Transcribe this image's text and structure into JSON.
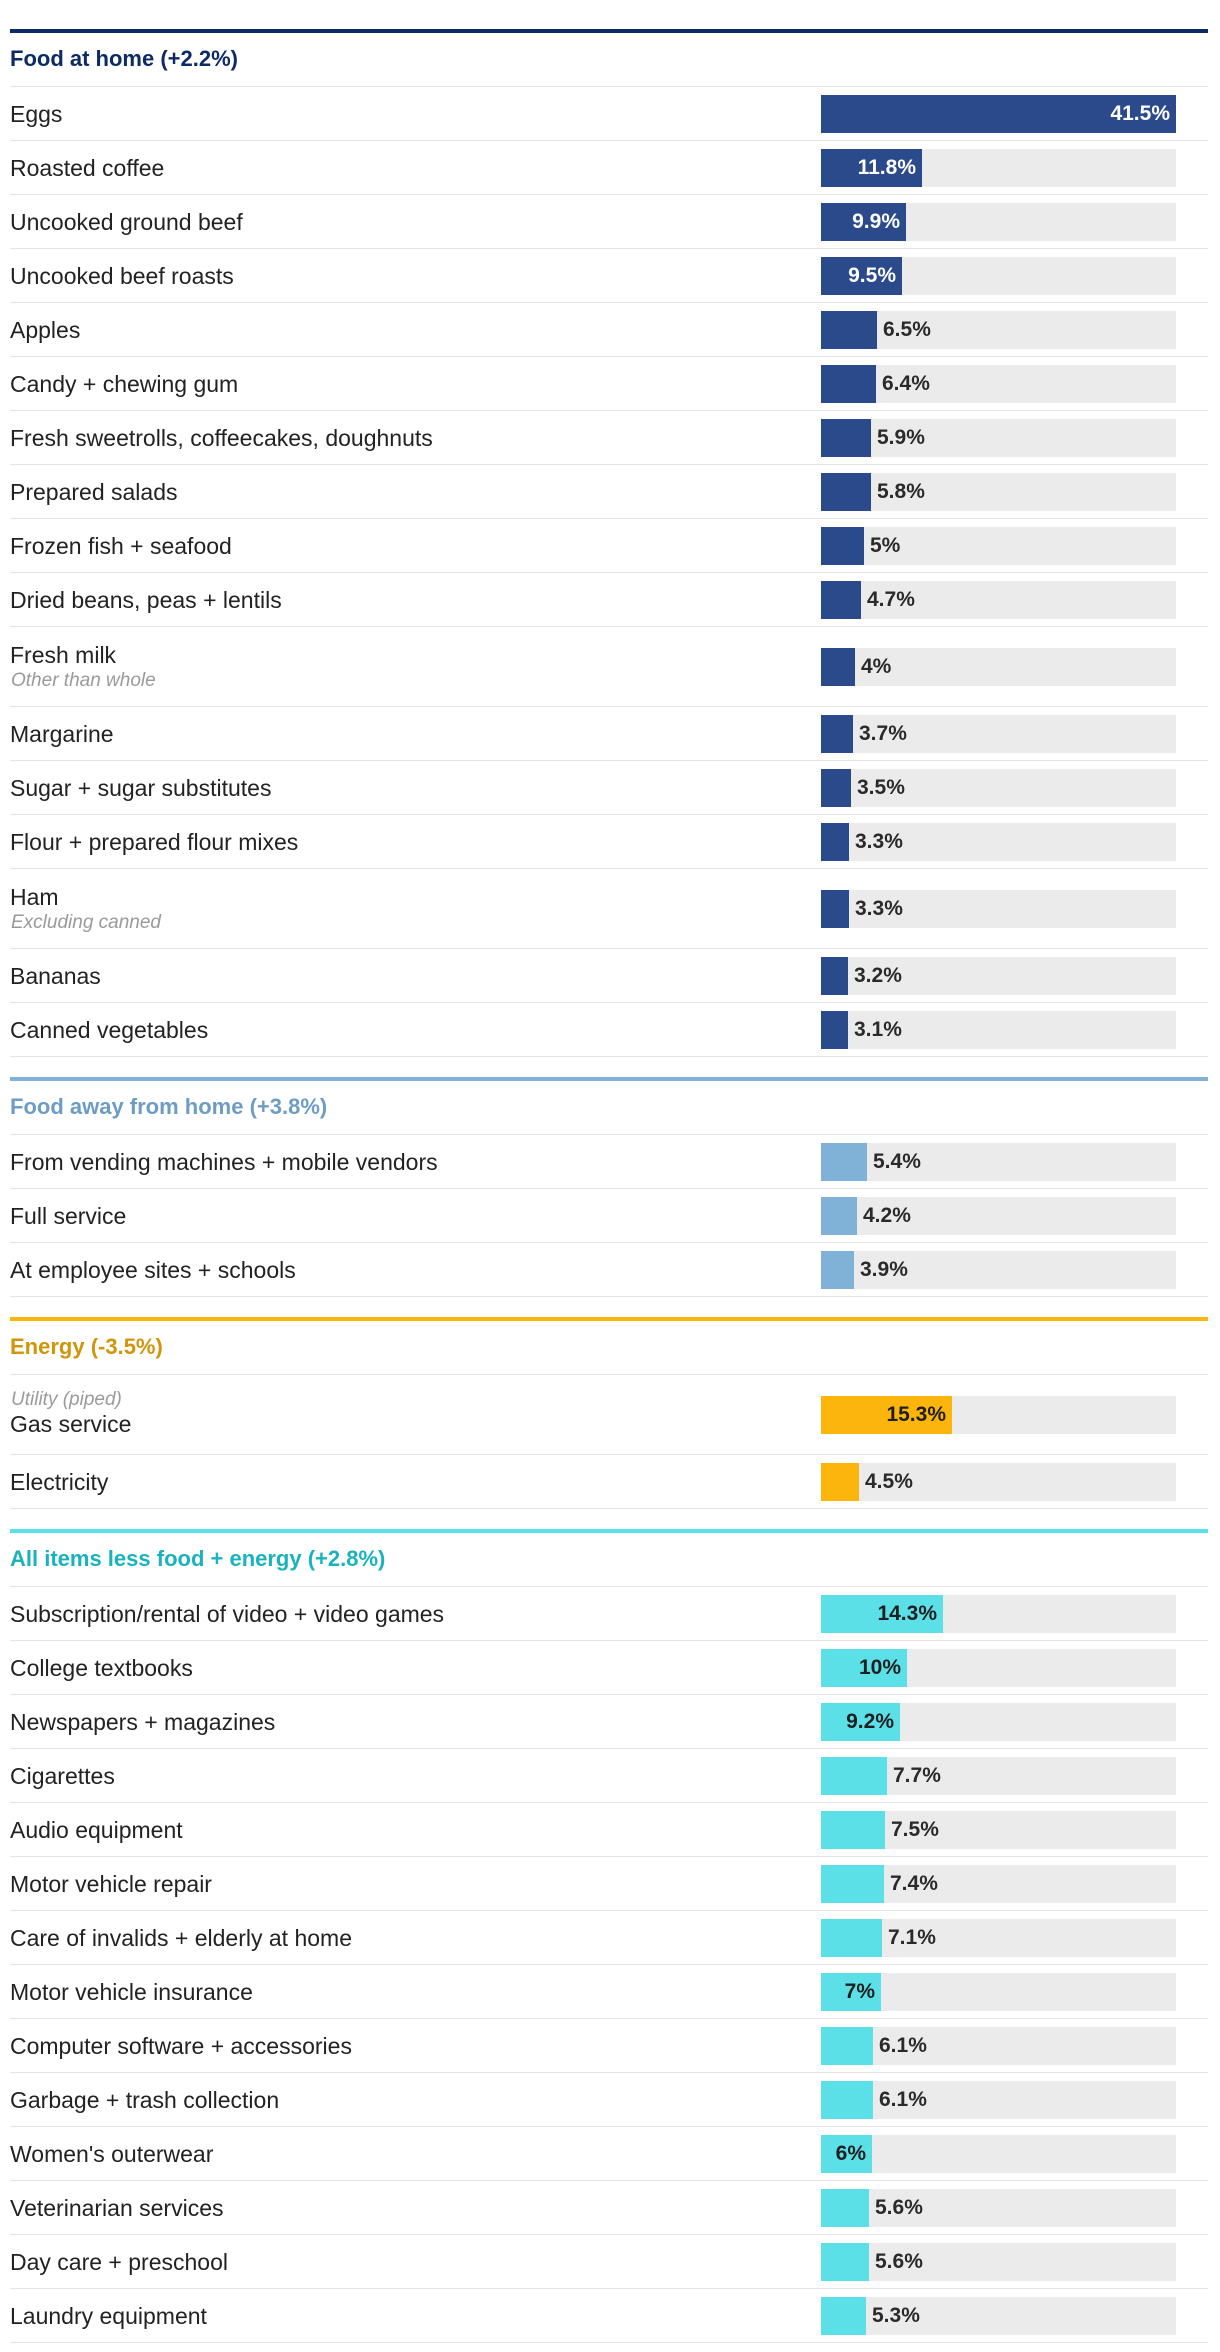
{
  "chart_data": {
    "type": "bar",
    "orientation": "horizontal",
    "title": "",
    "xlim": [
      0,
      41.5
    ],
    "unit": "%",
    "groups": [
      {
        "name": "Food at home (+2.2%)",
        "color": "#2b4a8b",
        "title_color": "#0e2a66",
        "label_color": "dark",
        "items": [
          {
            "label": "Eggs",
            "value": 41.5,
            "display": "41.5%"
          },
          {
            "label": "Roasted coffee",
            "value": 11.8,
            "display": "11.8%"
          },
          {
            "label": "Uncooked ground beef",
            "value": 9.9,
            "display": "9.9%"
          },
          {
            "label": "Uncooked beef roasts",
            "value": 9.5,
            "display": "9.5%"
          },
          {
            "label": "Apples",
            "value": 6.5,
            "display": "6.5%"
          },
          {
            "label": "Candy + chewing gum",
            "value": 6.4,
            "display": "6.4%"
          },
          {
            "label": "Fresh sweetrolls, coffeecakes, doughnuts",
            "value": 5.9,
            "display": "5.9%"
          },
          {
            "label": "Prepared salads",
            "value": 5.8,
            "display": "5.8%"
          },
          {
            "label": "Frozen fish + seafood",
            "value": 5,
            "display": "5%"
          },
          {
            "label": "Dried beans, peas + lentils",
            "value": 4.7,
            "display": "4.7%"
          },
          {
            "label": "Fresh milk",
            "note": "Other than whole",
            "note_pos": "below",
            "value": 4,
            "display": "4%"
          },
          {
            "label": "Margarine",
            "value": 3.7,
            "display": "3.7%"
          },
          {
            "label": "Sugar + sugar substitutes",
            "value": 3.5,
            "display": "3.5%"
          },
          {
            "label": "Flour + prepared flour mixes",
            "value": 3.3,
            "display": "3.3%"
          },
          {
            "label": "Ham",
            "note": "Excluding canned",
            "note_pos": "below",
            "value": 3.3,
            "display": "3.3%"
          },
          {
            "label": "Bananas",
            "value": 3.2,
            "display": "3.2%"
          },
          {
            "label": "Canned vegetables",
            "value": 3.1,
            "display": "3.1%"
          }
        ]
      },
      {
        "name": "Food away from home (+3.8%)",
        "color": "#80b1d6",
        "title_color": "#6d9dc4",
        "label_color": "dark",
        "items": [
          {
            "label": "From vending machines + mobile vendors",
            "value": 5.4,
            "display": "5.4%"
          },
          {
            "label": "Full service",
            "value": 4.2,
            "display": "4.2%"
          },
          {
            "label": "At employee sites + schools",
            "value": 3.9,
            "display": "3.9%"
          }
        ]
      },
      {
        "name": "Energy (-3.5%)",
        "color": "#fbb50c",
        "title_color": "#d1950a",
        "label_color": "dark",
        "items": [
          {
            "label": "Gas service",
            "note": "Utility (piped)",
            "note_pos": "above",
            "value": 15.3,
            "display": "15.3%"
          },
          {
            "label": "Electricity",
            "value": 4.5,
            "display": "4.5%"
          }
        ]
      },
      {
        "name": "All items less food + energy (+2.8%)",
        "color": "#5ce0e8",
        "title_color": "#19b3bf",
        "label_color": "dark",
        "items": [
          {
            "label": "Subscription/rental of video + video games",
            "value": 14.3,
            "display": "14.3%"
          },
          {
            "label": "College textbooks",
            "value": 10,
            "display": "10%"
          },
          {
            "label": "Newspapers + magazines",
            "value": 9.2,
            "display": "9.2%"
          },
          {
            "label": "Cigarettes",
            "value": 7.7,
            "display": "7.7%"
          },
          {
            "label": "Audio equipment",
            "value": 7.5,
            "display": "7.5%"
          },
          {
            "label": "Motor vehicle repair",
            "value": 7.4,
            "display": "7.4%"
          },
          {
            "label": "Care of invalids + elderly at home",
            "value": 7.1,
            "display": "7.1%"
          },
          {
            "label": "Motor vehicle insurance",
            "value": 7,
            "display": "7%"
          },
          {
            "label": "Computer software + accessories",
            "value": 6.1,
            "display": "6.1%"
          },
          {
            "label": "Garbage + trash collection",
            "value": 6.1,
            "display": "6.1%"
          },
          {
            "label": "Women's outerwear",
            "value": 6,
            "display": "6%"
          },
          {
            "label": "Veterinarian services",
            "value": 5.6,
            "display": "5.6%"
          },
          {
            "label": "Day care + preschool",
            "value": 5.6,
            "display": "5.6%"
          },
          {
            "label": "Laundry equipment",
            "value": 5.3,
            "display": "5.3%"
          }
        ]
      }
    ]
  }
}
